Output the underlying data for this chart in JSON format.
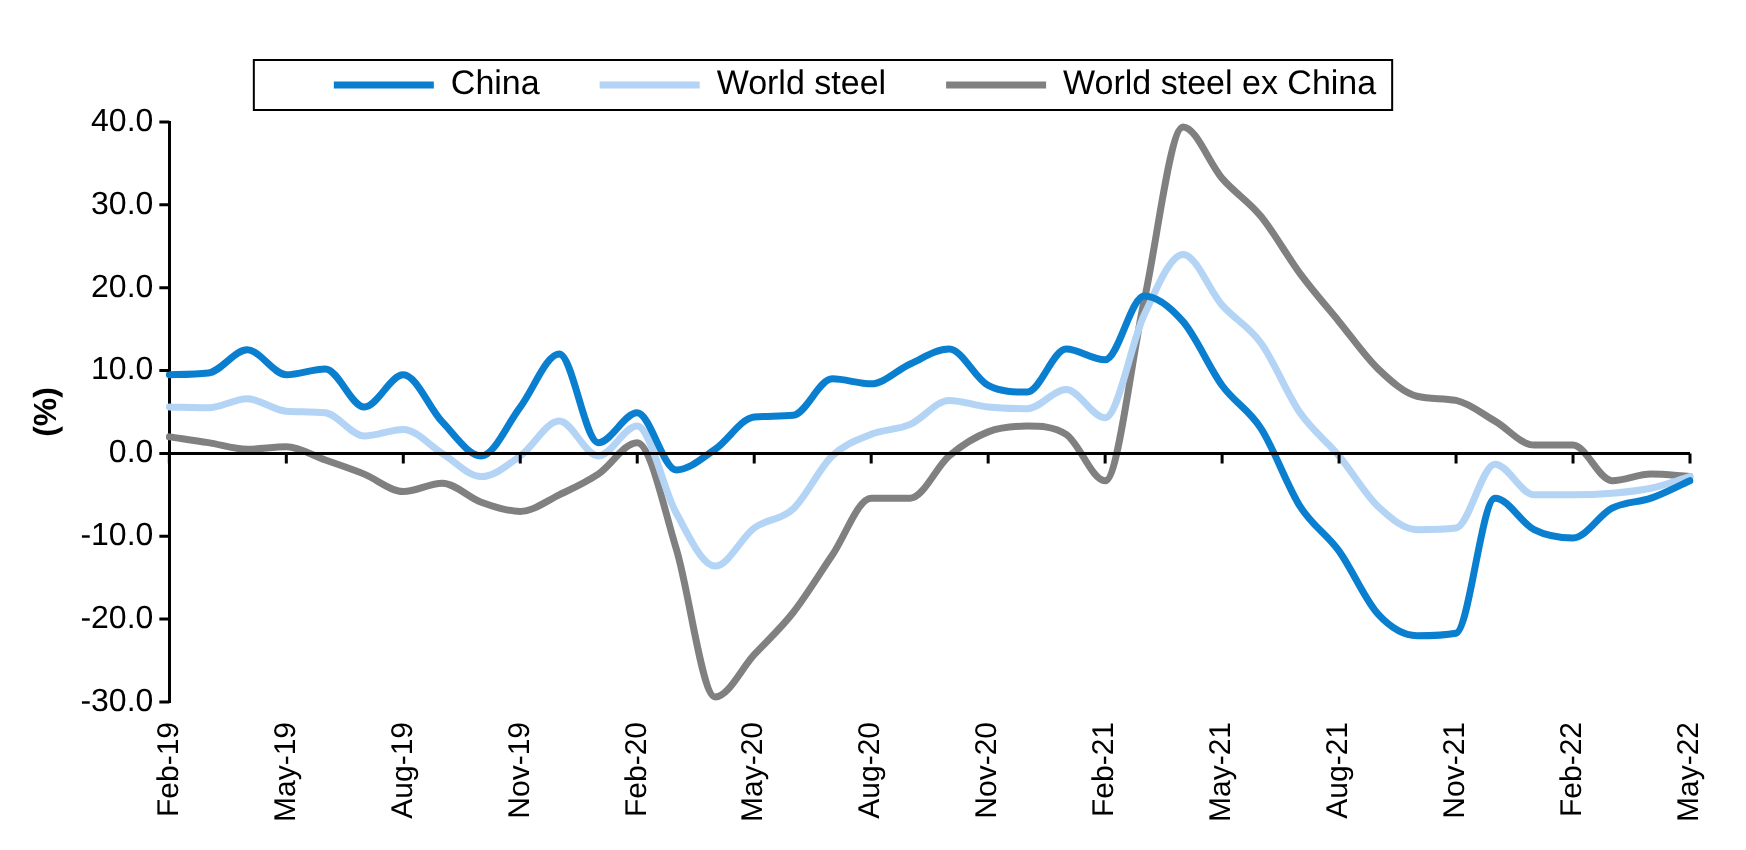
{
  "chart_data": {
    "type": "line",
    "ylabel": "(%)",
    "categories": [
      "Feb-19",
      null,
      null,
      "May-19",
      null,
      null,
      "Aug-19",
      null,
      null,
      "Nov-19",
      null,
      null,
      "Feb-20",
      null,
      null,
      "May-20",
      null,
      null,
      "Aug-20",
      null,
      null,
      "Nov-20",
      null,
      null,
      "Feb-21",
      null,
      null,
      "May-21",
      null,
      null,
      "Aug-21",
      null,
      null,
      "Nov-21",
      null,
      null,
      "Feb-22",
      null,
      null,
      "May-22"
    ],
    "series": [
      {
        "name": "China",
        "color": "#0a7fd0",
        "values": [
          9.5,
          9.7,
          12.5,
          9.5,
          10.2,
          5.6,
          9.5,
          3.8,
          -0.3,
          5.6,
          12,
          1.3,
          4.9,
          -2,
          0.5,
          4.4,
          4.6,
          9,
          8.4,
          10.8,
          12.6,
          8.2,
          7.4,
          12.6,
          11.3,
          19,
          15.9,
          8.2,
          3,
          -6.4,
          -11.8,
          -19.4,
          -22,
          -21.7,
          -5.4,
          -9.2,
          -10.2,
          -6.6,
          -5.4,
          -3.3
        ]
      },
      {
        "name": "World steel",
        "color": "#b4d4f5",
        "values": [
          5.6,
          5.5,
          6.6,
          5.1,
          4.9,
          2.1,
          2.9,
          0,
          -2.8,
          -0.3,
          3.9,
          -0.3,
          3.3,
          -7.2,
          -13.6,
          -9,
          -6.7,
          -0.3,
          2.3,
          3.5,
          6.4,
          5.6,
          5.4,
          7.7,
          4.3,
          16.7,
          24,
          17.9,
          13.3,
          4.9,
          -0.3,
          -6.4,
          -9.2,
          -9,
          -1.3,
          -5,
          -5,
          -4.8,
          -4.2,
          -2.8
        ]
      },
      {
        "name": "World steel ex China",
        "color": "#808080",
        "values": [
          2,
          1.3,
          0.5,
          0.8,
          -0.8,
          -2.5,
          -4.6,
          -3.6,
          -5.9,
          -7,
          -5,
          -2.5,
          1.3,
          -11.5,
          -29.4,
          -24.3,
          -19.2,
          -12.3,
          -5.4,
          -5.4,
          -0.3,
          2.6,
          3.3,
          2.3,
          -3.3,
          18.4,
          39.4,
          33.2,
          28.6,
          21.7,
          15.9,
          10.2,
          6.9,
          6.4,
          3.9,
          1,
          1,
          -3.3,
          -2.5,
          -2.8
        ]
      }
    ],
    "ylim": [
      -30,
      40
    ],
    "yticks": [
      {
        "value": 40,
        "label": "40.0"
      },
      {
        "value": 30,
        "label": "30.0"
      },
      {
        "value": 20,
        "label": "20.0"
      },
      {
        "value": 10,
        "label": "10.0"
      },
      {
        "value": 0,
        "label": "0.0"
      },
      {
        "value": -10,
        "label": "-10.0"
      },
      {
        "value": -20,
        "label": "-20.0"
      },
      {
        "value": -30,
        "label": "-30.0"
      }
    ],
    "ref_lines": [
      {
        "axis": "y",
        "value": 0,
        "color": "#000000",
        "line_style": "solid"
      }
    ],
    "grid": false,
    "legend": "top",
    "marker": "none",
    "line_style": "solid"
  }
}
